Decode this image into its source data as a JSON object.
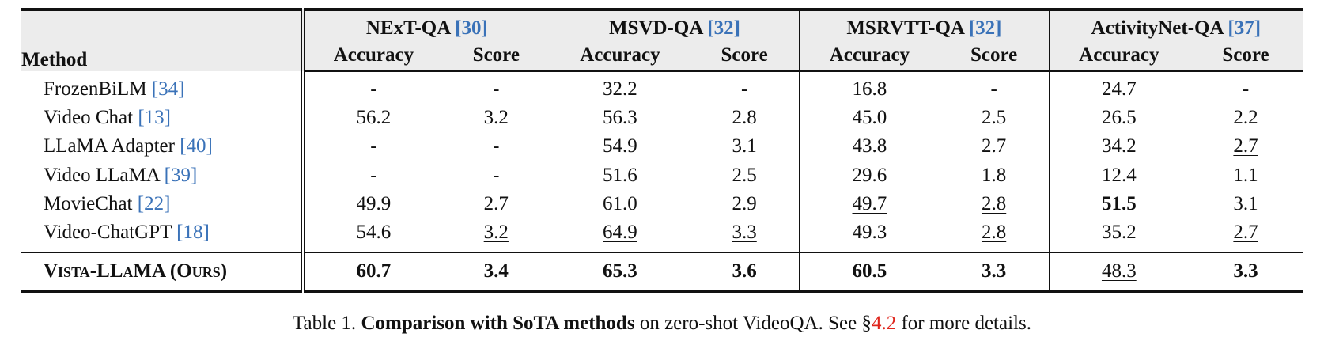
{
  "table": {
    "method_header": "Method",
    "groups": [
      {
        "name": "NExT-QA",
        "ref": "30"
      },
      {
        "name": "MSVD-QA",
        "ref": "32"
      },
      {
        "name": "MSRVTT-QA",
        "ref": "32"
      },
      {
        "name": "ActivityNet-QA",
        "ref": "37"
      }
    ],
    "sub_headers": [
      "Accuracy",
      "Score",
      "Accuracy",
      "Score",
      "Accuracy",
      "Score",
      "Accuracy",
      "Score"
    ],
    "rows": [
      {
        "method": "FrozenBiLM",
        "ref": "34",
        "values": [
          "-",
          "-",
          "32.2",
          "-",
          "16.8",
          "-",
          "24.7",
          "-"
        ],
        "underline": [],
        "bold": []
      },
      {
        "method": "Video Chat",
        "ref": "13",
        "values": [
          "56.2",
          "3.2",
          "56.3",
          "2.8",
          "45.0",
          "2.5",
          "26.5",
          "2.2"
        ],
        "underline": [
          0,
          1
        ],
        "bold": []
      },
      {
        "method": "LLaMA Adapter",
        "ref": "40",
        "values": [
          "-",
          "-",
          "54.9",
          "3.1",
          "43.8",
          "2.7",
          "34.2",
          "2.7"
        ],
        "underline": [
          7
        ],
        "bold": []
      },
      {
        "method": "Video LLaMA",
        "ref": "39",
        "values": [
          "-",
          "-",
          "51.6",
          "2.5",
          "29.6",
          "1.8",
          "12.4",
          "1.1"
        ],
        "underline": [],
        "bold": []
      },
      {
        "method": "MovieChat",
        "ref": "22",
        "values": [
          "49.9",
          "2.7",
          "61.0",
          "2.9",
          "49.7",
          "2.8",
          "51.5",
          "3.1"
        ],
        "underline": [
          4,
          5
        ],
        "bold": [
          6
        ]
      },
      {
        "method": "Video-ChatGPT",
        "ref": "18",
        "values": [
          "54.6",
          "3.2",
          "64.9",
          "3.3",
          "49.3",
          "2.8",
          "35.2",
          "2.7"
        ],
        "underline": [
          1,
          2,
          3,
          5,
          7
        ],
        "bold": []
      }
    ],
    "ours": {
      "method": "Vista-LLaMA (Ours)",
      "values": [
        "60.7",
        "3.4",
        "65.3",
        "3.6",
        "60.5",
        "3.3",
        "48.3",
        "3.3"
      ],
      "underline": [
        6
      ]
    }
  },
  "caption": {
    "prefix": "Table 1. ",
    "bold": "Comparison with SoTA methods",
    "middle": " on zero-shot VideoQA. See §",
    "section": "4.2",
    "suffix": " for more details."
  },
  "colors": {
    "citation": "#3a72b8",
    "section_link": "#e0261d",
    "header_bg": "#ececec"
  }
}
